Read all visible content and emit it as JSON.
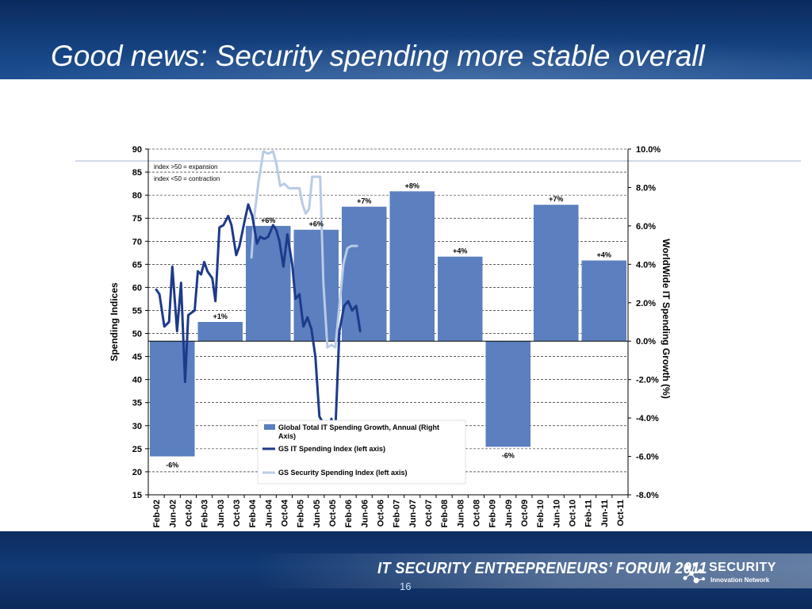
{
  "slide": {
    "title": "Good news: Security spending more stable overall",
    "footer_text": "IT SECURITY ENTREPRENEURS’ FORUM 2011",
    "logo_text": "SECURITY",
    "logo_subtext": "Innovation Network",
    "page_number": "16"
  },
  "colors": {
    "bar": "#5b7fbf",
    "gs_it_line": "#1e3a8a",
    "gs_security_line": "#b8cbe6"
  },
  "chart_data": {
    "type": "bar",
    "title": "",
    "x_labels": [
      "Feb-02",
      "Jun-02",
      "Oct-02",
      "Feb-03",
      "Jun-03",
      "Oct-03",
      "Feb-04",
      "Jun-04",
      "Oct-04",
      "Feb-05",
      "Jun-05",
      "Oct-05",
      "Feb-06",
      "Jun-06",
      "Oct-06",
      "Feb-07",
      "Jun-07",
      "Oct-07",
      "Feb-08",
      "Jun-08",
      "Oct-08",
      "Feb-09",
      "Jun-09",
      "Oct-09",
      "Feb-10",
      "Jun-10",
      "Oct-10",
      "Feb-11",
      "Jun-11",
      "Oct-11"
    ],
    "left_axis": {
      "label": "Spending Indices",
      "range": [
        15,
        90
      ],
      "ticks": [
        "15",
        "20",
        "25",
        "30",
        "35",
        "40",
        "45",
        "50",
        "55",
        "60",
        "65",
        "70",
        "75",
        "80",
        "85",
        "90"
      ]
    },
    "right_axis": {
      "label": "WorldWide IT Spending Growth (%)",
      "range": [
        -8.0,
        10.0
      ],
      "ticks": [
        "-8.0%",
        "-6.0%",
        "-4.0%",
        "-2.0%",
        "0.0%",
        "2.0%",
        "4.0%",
        "6.0%",
        "8.0%",
        "10.0%"
      ]
    },
    "notes": [
      "index >50 = expansion",
      "index <50 = contraction"
    ],
    "legend": {
      "position": "bottom-center",
      "entries": [
        "Global Total IT Spending Growth, Annual (Right Axis)",
        "GS IT Spending Index (left axis)",
        "GS Security Spending Index (left axis)"
      ]
    },
    "bars": {
      "name": "Global Total IT Spending Growth, Annual (Right Axis)",
      "axis": "right",
      "years": [
        2002,
        2003,
        2004,
        2005,
        2006,
        2007,
        2008,
        2009,
        2010,
        2011
      ],
      "values": [
        -6,
        1,
        6,
        5.8,
        7,
        7.8,
        4.4,
        -5.5,
        7.1,
        4.2
      ],
      "labels": [
        "-6%",
        "+1%",
        "+6%",
        "+6%",
        "+7%",
        "+8%",
        "+4%",
        "-6%",
        "+7%",
        "+4%"
      ]
    },
    "series": [
      {
        "name": "GS IT Spending Index (left axis)",
        "axis": "left",
        "points": [
          [
            0,
            59.5
          ],
          [
            0.2,
            58.5
          ],
          [
            0.5,
            51.5
          ],
          [
            0.8,
            52.5
          ],
          [
            1.0,
            64.5
          ],
          [
            1.3,
            50.5
          ],
          [
            1.55,
            61
          ],
          [
            1.8,
            39.5
          ],
          [
            2.0,
            54
          ],
          [
            2.4,
            55
          ],
          [
            2.6,
            63.5
          ],
          [
            2.8,
            62.8
          ],
          [
            3.0,
            65.5
          ],
          [
            3.2,
            63.5
          ],
          [
            3.5,
            62
          ],
          [
            3.7,
            57
          ],
          [
            3.95,
            73
          ],
          [
            4.2,
            73.5
          ],
          [
            4.5,
            75.5
          ],
          [
            4.7,
            73.5
          ],
          [
            5.0,
            67
          ],
          [
            5.2,
            69
          ],
          [
            5.5,
            74
          ],
          [
            5.75,
            78
          ],
          [
            6.0,
            75.5
          ],
          [
            6.3,
            69.5
          ],
          [
            6.5,
            71
          ],
          [
            6.75,
            70.5
          ],
          [
            7.0,
            71
          ],
          [
            7.3,
            73.5
          ],
          [
            7.5,
            72.5
          ],
          [
            7.7,
            70
          ],
          [
            7.95,
            64.5
          ],
          [
            8.2,
            71.5
          ],
          [
            8.5,
            65
          ],
          [
            8.7,
            57.5
          ],
          [
            8.95,
            58.5
          ],
          [
            9.2,
            51.5
          ],
          [
            9.45,
            53.5
          ],
          [
            9.7,
            51
          ],
          [
            9.95,
            45
          ],
          [
            10.2,
            32
          ],
          [
            10.45,
            30.5
          ],
          [
            10.7,
            27
          ],
          [
            10.95,
            31.5
          ],
          [
            11.2,
            29
          ],
          [
            11.45,
            50.5
          ],
          [
            11.75,
            56
          ],
          [
            12.0,
            57
          ],
          [
            12.25,
            55
          ],
          [
            12.5,
            56
          ],
          [
            12.75,
            50.5
          ]
        ]
      },
      {
        "name": "GS Security Spending Index (left axis)",
        "axis": "left",
        "points": [
          [
            5.95,
            66.5
          ],
          [
            6.15,
            76
          ],
          [
            6.4,
            83
          ],
          [
            6.7,
            89.5
          ],
          [
            7.0,
            89
          ],
          [
            7.3,
            89.5
          ],
          [
            7.5,
            87
          ],
          [
            7.75,
            82
          ],
          [
            8.0,
            82.5
          ],
          [
            8.3,
            81.5
          ],
          [
            8.6,
            81.5
          ],
          [
            8.95,
            81.5
          ],
          [
            9.15,
            78
          ],
          [
            9.35,
            76
          ],
          [
            9.55,
            77
          ],
          [
            9.75,
            84
          ],
          [
            9.95,
            84
          ],
          [
            10.25,
            84
          ],
          [
            10.45,
            61
          ],
          [
            10.7,
            47
          ],
          [
            10.95,
            47.5
          ],
          [
            11.2,
            47
          ],
          [
            11.45,
            56
          ],
          [
            11.7,
            65
          ],
          [
            11.95,
            68.5
          ],
          [
            12.2,
            69
          ],
          [
            12.55,
            69
          ]
        ]
      }
    ]
  }
}
